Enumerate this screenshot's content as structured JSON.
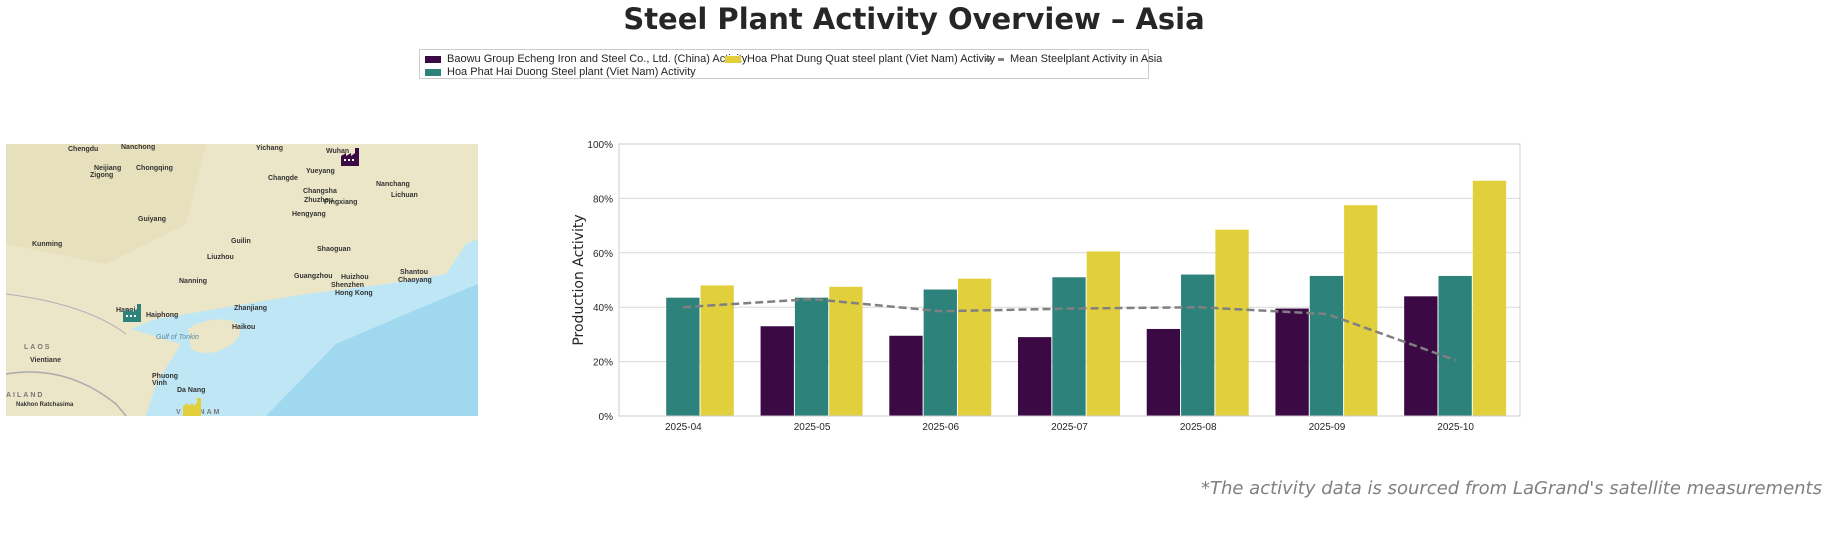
{
  "title": "Steel Plant Activity Overview – Asia",
  "legend": [
    {
      "label": "Baowu Group Echeng Iron and Steel Co., Ltd. (China) Activity",
      "color": "#3b0a45"
    },
    {
      "label": "Hoa Phat Hai Duong Steel plant (Viet Nam) Activity",
      "color": "#2e827c"
    },
    {
      "label": "Hoa Phat Dung Quat steel plant (Viet Nam) Activity",
      "color": "#e1d03c"
    },
    {
      "label": "Mean Steelplant Activity in Asia",
      "color": "#808080"
    }
  ],
  "map": {
    "labels": [
      "Chengdu",
      "Nanchong",
      "Yichang",
      "Wuhan",
      "Neijiang",
      "Zigong",
      "Chongqing",
      "Changde",
      "Yueyang",
      "Changsha",
      "Nanchang",
      "Zhuzhou",
      "Pingxiang",
      "Lichuan",
      "Hengyang",
      "Guiyang",
      "Kunming",
      "Guilin",
      "Liuzhou",
      "Shaoguan",
      "Nanning",
      "Guangzhou",
      "Huizhou",
      "Shantou",
      "Shenzhen",
      "Chaoyang",
      "Hong Kong",
      "Zhanjiang",
      "Haikou",
      "Hanoi",
      "Haiphong",
      "Gulf of Tonkin",
      "LAOS",
      "Vientiane",
      "Phuong Vinh",
      "Da Nang",
      "AILAND",
      "Nakhon Ratchasima",
      "VIETNAM"
    ],
    "plant_icons": [
      {
        "plant": "Baowu Group Echeng",
        "color": "#3b0a45"
      },
      {
        "plant": "Hoa Phat Hai Duong",
        "color": "#2e827c"
      },
      {
        "plant": "Hoa Phat Dung Quat",
        "color": "#e1d03c"
      }
    ]
  },
  "chart_data": {
    "type": "bar",
    "ylabel": "Production Activity",
    "ylim": [
      0,
      100
    ],
    "yticks": [
      "0%",
      "20%",
      "40%",
      "60%",
      "80%",
      "100%"
    ],
    "grid": true,
    "categories": [
      "2025-04",
      "2025-05",
      "2025-06",
      "2025-07",
      "2025-08",
      "2025-09",
      "2025-10"
    ],
    "series": [
      {
        "name": "Baowu Group Echeng Iron and Steel Co., Ltd. (China) Activity",
        "values": [
          null,
          33,
          29.5,
          29,
          32,
          39.5,
          44
        ]
      },
      {
        "name": "Hoa Phat Hai Duong Steel plant (Viet Nam) Activity",
        "values": [
          43.5,
          43.5,
          46.5,
          51,
          52,
          51.5,
          51.5
        ]
      },
      {
        "name": "Hoa Phat Dung Quat steel plant (Viet Nam) Activity",
        "values": [
          48,
          47.5,
          50.5,
          60.5,
          68.5,
          77.5,
          86.5
        ]
      }
    ],
    "line": {
      "name": "Mean Steelplant Activity in Asia",
      "values": [
        40,
        43,
        38.5,
        39.5,
        40,
        37.5,
        20.5
      ]
    }
  },
  "note": "*The activity data is sourced from LaGrand's satellite measurements"
}
